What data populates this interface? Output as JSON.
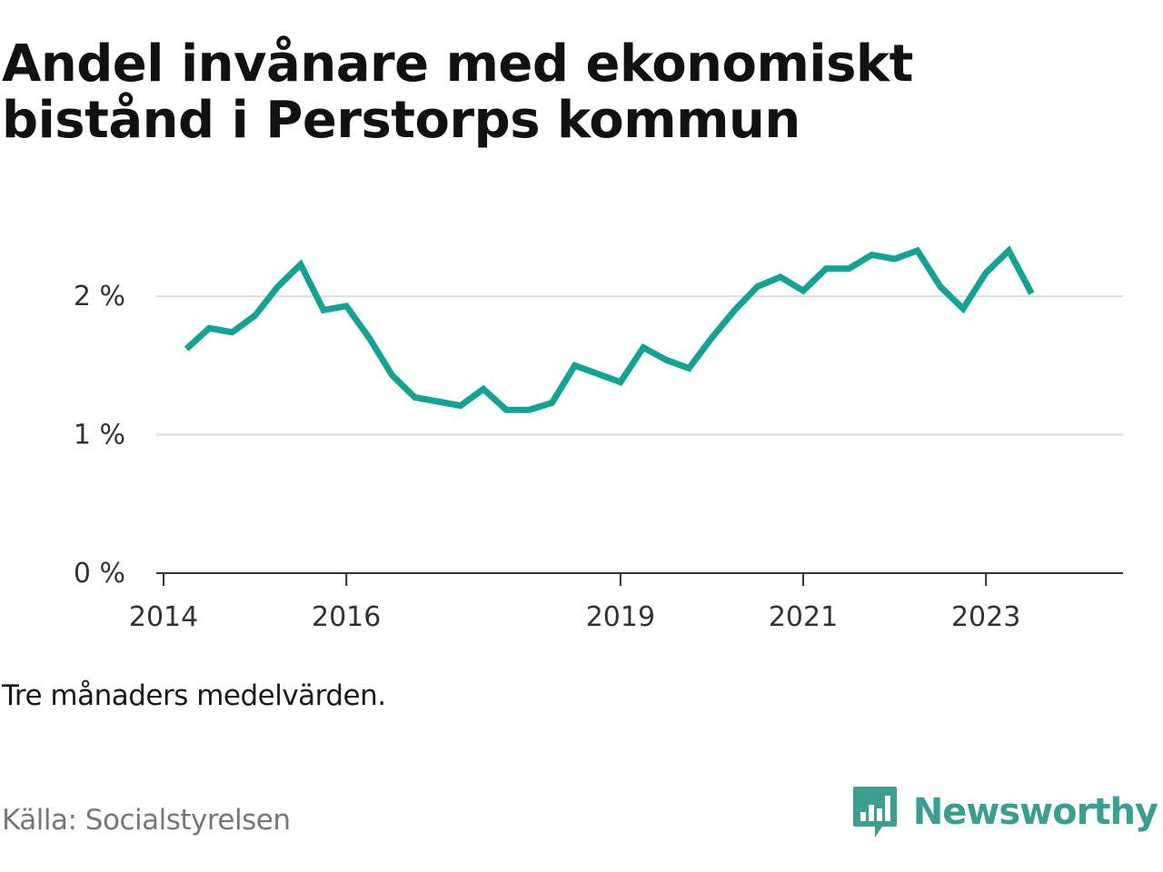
{
  "title": "Andel invånare med ekonomiskt bistånd i Perstorps kommun",
  "note": "Tre månaders medelvärden.",
  "source": "Källa: Socialstyrelsen",
  "brand": {
    "name": "Newsworthy",
    "color": "#3a9e90"
  },
  "chart_data": {
    "type": "line",
    "title": "Andel invånare med ekonomiskt bistånd i Perstorps kommun",
    "xlabel": "",
    "ylabel": "",
    "line_color": "#12a394",
    "grid": true,
    "x_ticks": [
      {
        "label": "2014",
        "value": 2014.0
      },
      {
        "label": "2016",
        "value": 2016.0
      },
      {
        "label": "2019",
        "value": 2019.0
      },
      {
        "label": "2021",
        "value": 2021.0
      },
      {
        "label": "2023",
        "value": 2023.0
      }
    ],
    "y_ticks": [
      {
        "label": "0 %",
        "value": 0
      },
      {
        "label": "1 %",
        "value": 1
      },
      {
        "label": "2 %",
        "value": 2
      }
    ],
    "xlim": [
      2013.92,
      2024.5
    ],
    "ylim": [
      0,
      2.5
    ],
    "series": [
      {
        "values": [
          [
            2014.25,
            1.62
          ],
          [
            2014.5,
            1.77
          ],
          [
            2014.75,
            1.74
          ],
          [
            2015.0,
            1.86
          ],
          [
            2015.25,
            2.07
          ],
          [
            2015.5,
            2.23
          ],
          [
            2015.75,
            1.9
          ],
          [
            2016.0,
            1.93
          ],
          [
            2016.25,
            1.7
          ],
          [
            2016.5,
            1.43
          ],
          [
            2016.75,
            1.27
          ],
          [
            2017.0,
            1.24
          ],
          [
            2017.25,
            1.21
          ],
          [
            2017.5,
            1.33
          ],
          [
            2017.75,
            1.18
          ],
          [
            2018.0,
            1.18
          ],
          [
            2018.25,
            1.23
          ],
          [
            2018.5,
            1.5
          ],
          [
            2018.75,
            1.44
          ],
          [
            2019.0,
            1.38
          ],
          [
            2019.25,
            1.63
          ],
          [
            2019.5,
            1.54
          ],
          [
            2019.75,
            1.48
          ],
          [
            2020.0,
            1.7
          ],
          [
            2020.25,
            1.9
          ],
          [
            2020.5,
            2.07
          ],
          [
            2020.75,
            2.14
          ],
          [
            2021.0,
            2.04
          ],
          [
            2021.25,
            2.2
          ],
          [
            2021.5,
            2.2
          ],
          [
            2021.75,
            2.3
          ],
          [
            2022.0,
            2.27
          ],
          [
            2022.25,
            2.33
          ],
          [
            2022.5,
            2.07
          ],
          [
            2022.75,
            1.91
          ],
          [
            2023.0,
            2.17
          ],
          [
            2023.25,
            2.33
          ],
          [
            2023.5,
            2.02
          ]
        ]
      }
    ]
  }
}
